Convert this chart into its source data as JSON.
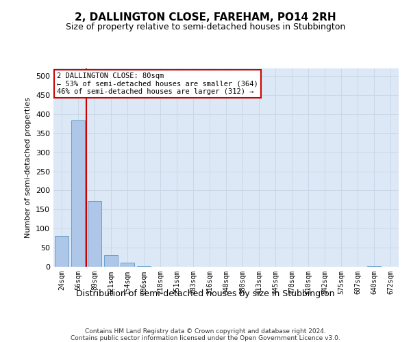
{
  "title": "2, DALLINGTON CLOSE, FAREHAM, PO14 2RH",
  "subtitle": "Size of property relative to semi-detached houses in Stubbington",
  "xlabel": "Distribution of semi-detached houses by size in Stubbington",
  "ylabel": "Number of semi-detached properties",
  "categories": [
    "24sqm",
    "56sqm",
    "89sqm",
    "121sqm",
    "154sqm",
    "186sqm",
    "218sqm",
    "251sqm",
    "283sqm",
    "316sqm",
    "348sqm",
    "380sqm",
    "413sqm",
    "445sqm",
    "478sqm",
    "510sqm",
    "542sqm",
    "575sqm",
    "607sqm",
    "640sqm",
    "672sqm"
  ],
  "bar_values": [
    80,
    383,
    172,
    30,
    10,
    1,
    0,
    0,
    0,
    0,
    0,
    0,
    0,
    0,
    0,
    0,
    0,
    0,
    0,
    1,
    0
  ],
  "bar_color": "#aec6e8",
  "bar_edge_color": "#5a9ac5",
  "grid_color": "#c8d8e8",
  "background_color": "#dce8f5",
  "property_line_x": 1.5,
  "annotation_text_line1": "2 DALLINGTON CLOSE: 80sqm",
  "annotation_text_line2": "← 53% of semi-detached houses are smaller (364)",
  "annotation_text_line3": "46% of semi-detached houses are larger (312) →",
  "annotation_box_color": "#ffffff",
  "annotation_box_edge_color": "#cc0000",
  "property_line_color": "#cc0000",
  "ylim": [
    0,
    520
  ],
  "yticks": [
    0,
    50,
    100,
    150,
    200,
    250,
    300,
    350,
    400,
    450,
    500
  ],
  "footer_line1": "Contains HM Land Registry data © Crown copyright and database right 2024.",
  "footer_line2": "Contains public sector information licensed under the Open Government Licence v3.0."
}
